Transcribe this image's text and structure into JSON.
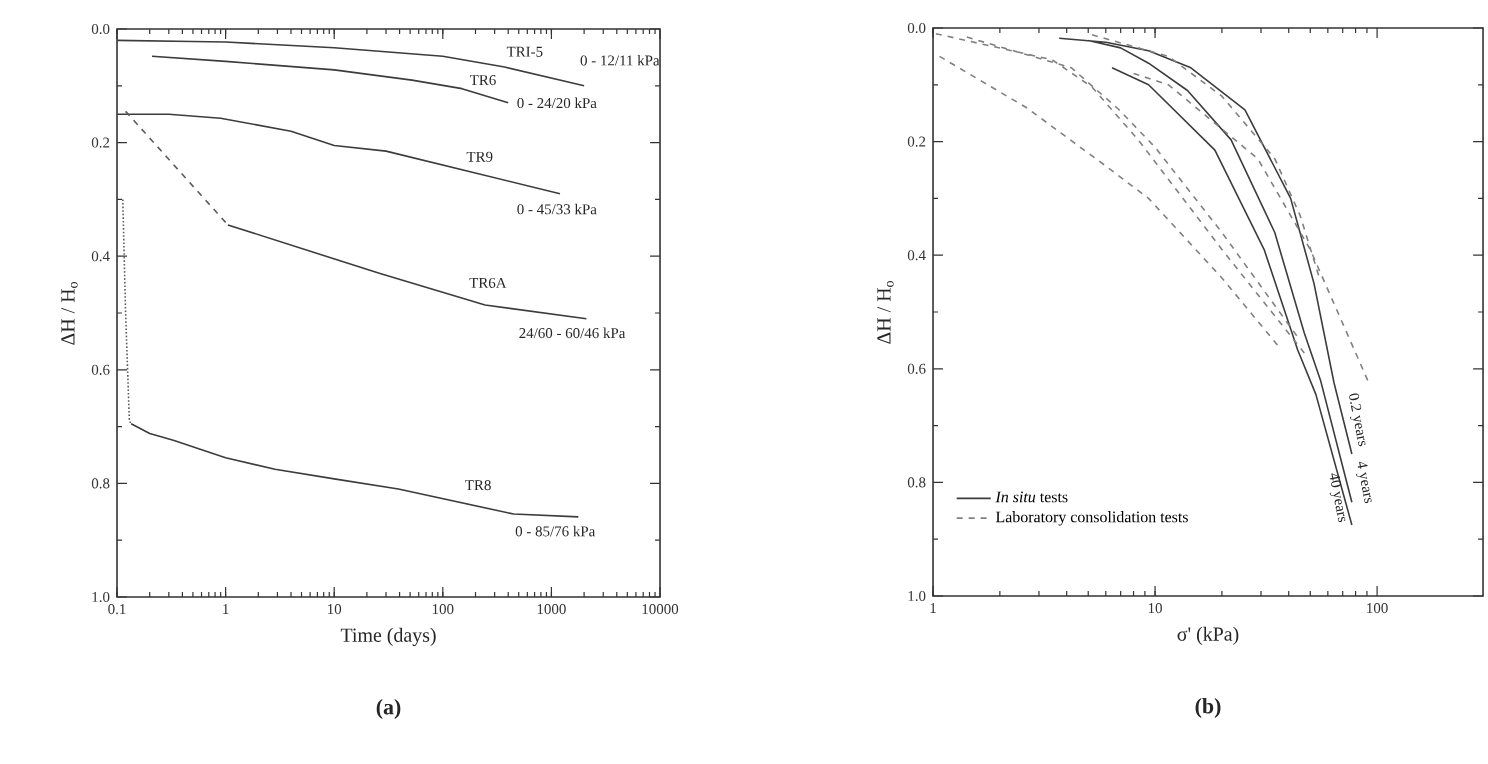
{
  "chart_data": [
    {
      "type": "line",
      "title": "(a)",
      "xlabel": "Time (days)",
      "ylabel": "ΔH / H$_{o}$",
      "log": "x",
      "xlim": [
        0.1,
        10000
      ],
      "xticks": [
        0.1,
        1,
        10,
        100,
        1000,
        10000
      ],
      "ylim": [
        1.0,
        0.0
      ],
      "yticks": [
        {
          "value": 0,
          "label": "0.0"
        },
        {
          "value": 0.2,
          "label": "0.2"
        },
        {
          "value": 0.4,
          "label": "0.4"
        },
        {
          "value": 0.6,
          "label": "0.6"
        },
        {
          "value": 0.8,
          "label": "0.8"
        },
        {
          "value": 1,
          "label": "1.0"
        }
      ],
      "grid": false,
      "line_style": "solid",
      "series": [
        {
          "name": "TRI-5",
          "color": "#3c3c3c",
          "x": [
            0.1,
            0.5,
            1,
            10,
            100,
            370,
            2000
          ],
          "values": [
            0.02,
            0.022,
            0.023,
            0.033,
            0.048,
            0.067,
            0.1
          ]
        },
        {
          "name": "TR6",
          "color": "#3c3c3c",
          "x": [
            0.21,
            1,
            10,
            52,
            150,
            400
          ],
          "values": [
            0.048,
            0.057,
            0.072,
            0.09,
            0.105,
            0.13
          ]
        },
        {
          "name": "TR9",
          "color": "#3c3c3c",
          "x": [
            0.1,
            0.3,
            0.9,
            4,
            10,
            30,
            1200
          ],
          "values": [
            0.15,
            0.15,
            0.157,
            0.18,
            0.205,
            0.215,
            0.29
          ]
        },
        {
          "color": "#5a5a5a",
          "line_style": "dashed",
          "x": [
            0.12,
            1.05
          ],
          "values": [
            0.145,
            0.345
          ]
        },
        {
          "name": "TR6A",
          "color": "#3c3c3c",
          "x": [
            1.05,
            26,
            245,
            2100
          ],
          "values": [
            0.345,
            0.43,
            0.486,
            0.51
          ]
        },
        {
          "color": "#5a5a5a",
          "line_style": "dotted",
          "x": [
            0.113,
            0.12,
            0.13,
            0.135
          ],
          "values": [
            0.3,
            0.5,
            0.69,
            0.695
          ]
        },
        {
          "name": "TR8",
          "color": "#3c3c3c",
          "x": [
            0.135,
            0.2,
            0.33,
            1,
            2.85,
            10,
            39,
            450,
            1770
          ],
          "values": [
            0.695,
            0.712,
            0.724,
            0.755,
            0.775,
            0.792,
            0.81,
            0.854,
            0.859
          ]
        }
      ],
      "annotations": [
        "0 - 12/11 kPa",
        "0 - 24/20 kPa",
        "0 - 45/33 kPa",
        "24/60 - 60/46 kPa",
        "0 - 85/76 kPa"
      ]
    },
    {
      "type": "line",
      "title": "(b)",
      "xlabel": "σ' (kPa)",
      "ylabel": "ΔH / H$_{o}$",
      "log": "x",
      "xlim": [
        1,
        300
      ],
      "xticks": [
        1,
        10,
        100
      ],
      "ylim": [
        1.0,
        0.0
      ],
      "yticks": [
        {
          "value": 0,
          "label": "0.0"
        },
        {
          "value": 0.2,
          "label": "0.2"
        },
        {
          "value": 0.4,
          "label": "0.4"
        },
        {
          "value": 0.6,
          "label": "0.6"
        },
        {
          "value": 0.8,
          "label": "0.8"
        },
        {
          "value": 1,
          "label": "1.0"
        }
      ],
      "grid": false,
      "legend": "bottom left",
      "series": [
        {
          "name": "*In situ* tests",
          "color": "#3c3c3c",
          "line_style": "solid",
          "x": [
            3.7,
            6,
            9.35,
            14.5,
            25.4,
            40.8,
            52,
            64,
            77,
            null,
            5,
            7,
            9.35,
            14,
            22,
            34.6,
            47,
            55.6,
            77,
            null,
            6.4,
            9.35,
            18.6,
            31,
            43.9,
            53,
            77
          ],
          "values": [
            0.018,
            0.025,
            0.04,
            0.07,
            0.144,
            0.3,
            0.45,
            0.625,
            0.75,
            null,
            0.022,
            0.035,
            0.062,
            0.11,
            0.197,
            0.36,
            0.537,
            0.62,
            0.835,
            null,
            0.07,
            0.1,
            0.215,
            0.39,
            0.567,
            0.645,
            0.875
          ]
        },
        {
          "name": "Laboratory consolidation tests",
          "color": "#808080",
          "line_style": "dashed",
          "x": [
            1.03,
            3.44,
            5.2,
            8.4,
            20,
            47,
            null,
            1.42,
            4.2,
            6.85,
            10,
            20,
            45,
            null,
            1.07,
            2.63,
            6,
            9.35,
            20,
            36.8,
            null,
            8,
            11.5,
            29,
            50,
            93,
            null,
            5.2,
            11.5,
            20,
            34.6,
            45,
            55
          ],
          "values": [
            0.01,
            0.056,
            0.104,
            0.197,
            0.39,
            0.572,
            null,
            0.016,
            0.07,
            0.143,
            0.21,
            0.36,
            0.55,
            null,
            0.05,
            0.14,
            0.243,
            0.3,
            0.44,
            0.565,
            null,
            0.08,
            0.1,
            0.23,
            0.39,
            0.63,
            null,
            0.012,
            0.05,
            0.12,
            0.23,
            0.33,
            0.44
          ]
        }
      ],
      "annotations": [
        "0.2 years",
        "4 years",
        "40 years"
      ]
    }
  ]
}
